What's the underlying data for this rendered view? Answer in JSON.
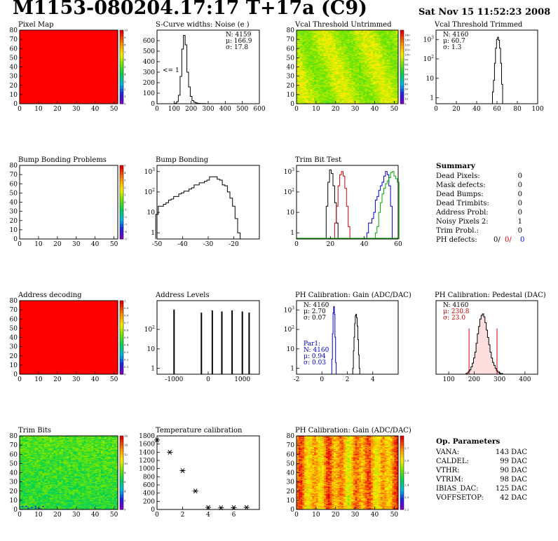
{
  "header": {
    "title": "M1153-080204.17:17 T+17a (C9)",
    "date": "Sat Nov 15 11:52:23 2008"
  },
  "chart_data": [
    {
      "id": "pixel-map",
      "type": "heatmap",
      "title": "Pixel Map",
      "fill": "#ff0000",
      "xlim": [
        0,
        52
      ],
      "ylim": [
        0,
        80
      ],
      "xticks": [
        0,
        10,
        20,
        30,
        40,
        50
      ],
      "yticks": [
        0,
        10,
        20,
        30,
        40,
        50,
        60,
        70,
        80
      ],
      "zlim": [
        0,
        10
      ],
      "zticks": [
        0,
        1,
        2,
        3,
        4,
        5,
        6,
        7,
        8,
        9,
        10
      ],
      "values_note": "all pixels responded"
    },
    {
      "id": "scurve",
      "type": "histogram",
      "title": "S-Curve widths: Noise (e )",
      "xlim": [
        0,
        600
      ],
      "ylim": [
        0,
        700
      ],
      "xticks": [
        0,
        100,
        200,
        300,
        400,
        500,
        600
      ],
      "yticks": [
        0,
        100,
        200,
        300,
        400,
        500,
        600
      ],
      "annotation": "<= 1",
      "stats": [
        "N: 4159",
        "μ: 166.9",
        "σ: 17.8"
      ],
      "series": [
        {
          "color": "#000000",
          "bin_width": 10,
          "x": [
            110,
            120,
            130,
            140,
            150,
            160,
            170,
            180,
            190,
            200,
            210,
            220,
            230,
            240,
            250,
            260,
            270,
            280
          ],
          "values": [
            5,
            20,
            80,
            260,
            520,
            650,
            560,
            300,
            160,
            70,
            30,
            15,
            8,
            4,
            3,
            2,
            1,
            1
          ]
        }
      ]
    },
    {
      "id": "vcal-untrimmed",
      "type": "heatmap",
      "title": "Vcal Threshold Untrimmed",
      "xlim": [
        0,
        52
      ],
      "ylim": [
        0,
        80
      ],
      "xticks": [
        0,
        10,
        20,
        30,
        40,
        50
      ],
      "yticks": [
        0,
        10,
        20,
        30,
        40,
        50,
        60,
        70,
        80
      ],
      "zlim": [
        0,
        150
      ],
      "zticks": [
        0,
        10,
        20,
        30,
        40,
        50,
        60,
        70,
        80,
        90,
        100,
        110,
        120,
        130,
        140
      ],
      "value_range": [
        75,
        105
      ]
    },
    {
      "id": "vcal-trimmed",
      "type": "histogram",
      "title": "Vcal Threshold Trimmed",
      "yscale": "log",
      "xlim": [
        0,
        100
      ],
      "ylim": [
        0.5,
        3000
      ],
      "xticks": [
        0,
        20,
        40,
        60,
        80,
        100
      ],
      "yticks": [
        1,
        10,
        100,
        1000
      ],
      "stats": [
        "N: 4160",
        "μ: 60.7",
        "σ:  1.3"
      ],
      "series": [
        {
          "color": "#000000",
          "bin_width": 1,
          "x": [
            56,
            57,
            58,
            59,
            60,
            61,
            62,
            63,
            64,
            65
          ],
          "values": [
            2,
            8,
            60,
            350,
            1000,
            1300,
            900,
            350,
            60,
            5
          ]
        }
      ]
    },
    {
      "id": "bump-problems",
      "type": "heatmap",
      "title": "Bump Bonding Problems",
      "fill": "#ffffff",
      "xlim": [
        0,
        52
      ],
      "ylim": [
        0,
        80
      ],
      "xticks": [
        0,
        10,
        20,
        30,
        40,
        50
      ],
      "yticks": [
        0,
        10,
        20,
        30,
        40,
        50,
        60,
        70,
        80
      ],
      "zlim": [
        -5,
        5
      ],
      "zticks": [
        -5,
        -4,
        -3,
        -2,
        -1,
        0,
        1,
        2,
        3,
        4,
        5
      ],
      "values_note": "no problems"
    },
    {
      "id": "bump-bonding",
      "type": "histogram",
      "title": "Bump Bonding",
      "yscale": "log",
      "xlim": [
        -50,
        -10
      ],
      "ylim": [
        0.5,
        2000
      ],
      "xticks": [
        -50,
        -40,
        -30,
        -20
      ],
      "yticks": [
        1,
        10,
        100,
        1000
      ],
      "series": [
        {
          "color": "#000000",
          "bin_width": 1,
          "x": [
            -50,
            -49,
            -48,
            -47,
            -46,
            -45,
            -44,
            -43,
            -42,
            -41,
            -40,
            -39,
            -38,
            -37,
            -36,
            -35,
            -34,
            -33,
            -32,
            -31,
            -30,
            -29,
            -28,
            -27,
            -26,
            -25,
            -24,
            -23,
            -22,
            -21,
            -20,
            -19,
            -18
          ],
          "values": [
            8,
            20,
            20,
            25,
            30,
            40,
            45,
            60,
            60,
            80,
            90,
            110,
            110,
            140,
            160,
            220,
            220,
            280,
            280,
            330,
            380,
            550,
            550,
            550,
            420,
            380,
            220,
            200,
            100,
            50,
            20,
            5,
            1
          ]
        }
      ]
    },
    {
      "id": "trim-bit-test",
      "type": "histogram",
      "title": "Trim Bit Test",
      "yscale": "log",
      "xlim": [
        0,
        60
      ],
      "ylim": [
        0.5,
        2000
      ],
      "xticks": [
        0,
        20,
        40,
        60
      ],
      "yticks": [
        1,
        10,
        100,
        1000
      ],
      "series": [
        {
          "color": "#000000",
          "bin_width": 1,
          "x": [
            18,
            19,
            20,
            21,
            22,
            23,
            24
          ],
          "values": [
            20,
            300,
            1200,
            800,
            200,
            30,
            3
          ]
        },
        {
          "color": "#cc0000",
          "bin_width": 1,
          "x": [
            23,
            24,
            25,
            26,
            27,
            28,
            29,
            30,
            31
          ],
          "values": [
            3,
            20,
            200,
            700,
            1000,
            600,
            150,
            20,
            2
          ]
        },
        {
          "color": "#0000cc",
          "bin_width": 1,
          "x": [
            42,
            43,
            44,
            45,
            46,
            47,
            48,
            49,
            50,
            51,
            52,
            53,
            54,
            55,
            56
          ],
          "values": [
            1,
            3,
            3,
            5,
            10,
            40,
            60,
            120,
            200,
            300,
            600,
            1000,
            700,
            200,
            20
          ]
        },
        {
          "color": "#00aa00",
          "bin_width": 1,
          "x": [
            47,
            48,
            49,
            50,
            51,
            52,
            53,
            54,
            55,
            56,
            57,
            58,
            59,
            60
          ],
          "values": [
            1,
            2,
            10,
            30,
            80,
            150,
            250,
            350,
            500,
            900,
            1000,
            600,
            450,
            300
          ]
        }
      ]
    },
    {
      "id": "address-decoding",
      "type": "heatmap",
      "title": "Address decoding",
      "fill": "#ff0000",
      "xlim": [
        0,
        52
      ],
      "ylim": [
        0,
        80
      ],
      "xticks": [
        0,
        10,
        20,
        30,
        40,
        50
      ],
      "yticks": [
        0,
        10,
        20,
        30,
        40,
        50,
        60,
        70,
        80
      ],
      "zlim": [
        0,
        1
      ],
      "zticks": [
        0,
        0.1,
        0.2,
        0.3,
        0.4,
        0.5,
        0.6,
        0.7,
        0.8,
        0.9,
        1
      ],
      "values_note": "all addresses decoded"
    },
    {
      "id": "address-levels",
      "type": "histogram",
      "title": "Address Levels",
      "yscale": "log",
      "xlim": [
        -1500,
        1500
      ],
      "ylim": [
        0.5,
        3000
      ],
      "xticks": [
        -1000,
        0,
        1000
      ],
      "yticks": [
        1,
        10,
        100
      ],
      "series": [
        {
          "color": "#000000",
          "bin_width": 20,
          "x": [
            -1000,
            -200,
            120,
            400,
            700,
            1000,
            1200
          ],
          "values": [
            1000,
            700,
            900,
            800,
            900,
            800,
            700
          ]
        }
      ]
    },
    {
      "id": "ph-gain",
      "type": "histogram",
      "title": "PH Calibration: Gain (ADC/DAC)",
      "yscale": "log",
      "xlim": [
        -2,
        6
      ],
      "ylim": [
        0.5,
        3000
      ],
      "xticks": [
        -2,
        0,
        2,
        4
      ],
      "yticks": [
        1,
        10,
        100,
        1000
      ],
      "stats": [
        "N: 4160",
        "μ: 2.70",
        "σ: 0.07"
      ],
      "stats2": [
        "Par1:",
        "N: 4160",
        "μ: 0.94",
        "σ: 0.03"
      ],
      "series": [
        {
          "color": "#000000",
          "bin_width": 0.05,
          "x": [
            2.45,
            2.5,
            2.55,
            2.6,
            2.65,
            2.7,
            2.75,
            2.8,
            2.85,
            2.9,
            2.95
          ],
          "values": [
            1,
            8,
            40,
            200,
            500,
            600,
            400,
            150,
            30,
            5,
            1
          ]
        },
        {
          "color": "#0000cc",
          "bin_width": 0.05,
          "x": [
            0.8,
            0.85,
            0.9,
            0.95,
            1.0,
            1.05,
            1.1
          ],
          "values": [
            3,
            60,
            700,
            1500,
            600,
            40,
            2
          ]
        }
      ]
    },
    {
      "id": "ph-pedestal",
      "type": "histogram",
      "title": "PH Calibration: Pedestal (DAC)",
      "xlim": [
        50,
        450
      ],
      "ylim": [
        0,
        100
      ],
      "xticks": [
        100,
        200,
        300,
        400
      ],
      "yticks": [],
      "stats": [
        "N: 4160",
        "μ: 230.8",
        "σ: 23.0"
      ],
      "cut_lines": [
        180,
        290
      ],
      "series": [
        {
          "color": "#000000",
          "bin_width": 5,
          "x": [
            170,
            175,
            180,
            185,
            190,
            195,
            200,
            205,
            210,
            215,
            220,
            225,
            230,
            235,
            240,
            245,
            250,
            255,
            260,
            265,
            270,
            275,
            280,
            285,
            290,
            295,
            300,
            305,
            310
          ],
          "values": [
            1,
            2,
            4,
            6,
            10,
            15,
            22,
            30,
            42,
            55,
            65,
            75,
            80,
            82,
            78,
            70,
            60,
            50,
            40,
            30,
            22,
            16,
            12,
            8,
            5,
            3,
            2,
            1,
            1
          ]
        }
      ]
    },
    {
      "id": "trim-bits",
      "type": "heatmap",
      "title": "Trim Bits",
      "xlim": [
        0,
        52
      ],
      "ylim": [
        0,
        80
      ],
      "xticks": [
        0,
        10,
        20,
        30,
        40,
        50
      ],
      "yticks": [
        0,
        10,
        20,
        30,
        40,
        50,
        60,
        70,
        80
      ],
      "zlim": [
        0,
        16
      ],
      "zticks": [
        0,
        2,
        4,
        6,
        8,
        10,
        12,
        14,
        16
      ],
      "value_range": [
        5,
        10
      ]
    },
    {
      "id": "temperature",
      "type": "scatter",
      "title": "Temperature calibration",
      "xlim": [
        0,
        8
      ],
      "ylim": [
        0,
        1800
      ],
      "xticks": [
        0,
        2,
        4,
        6
      ],
      "yticks": [
        0,
        200,
        400,
        600,
        800,
        1000,
        1200,
        1400,
        1600,
        1800
      ],
      "x": [
        0,
        1,
        2,
        3,
        4,
        5,
        6,
        7
      ],
      "y": [
        1700,
        1400,
        950,
        450,
        50,
        40,
        45,
        50
      ]
    },
    {
      "id": "ph-gain-map",
      "type": "heatmap",
      "title": "PH Calibration: Gain (ADC/DAC)",
      "xlim": [
        0,
        52
      ],
      "ylim": [
        0,
        80
      ],
      "xticks": [
        0,
        10,
        20,
        30,
        40,
        50
      ],
      "yticks": [
        0,
        10,
        20,
        30,
        40,
        50,
        60,
        70,
        80
      ],
      "zlim": [
        2.2,
        2.8
      ],
      "zticks": [
        2.2,
        2.3,
        2.4,
        2.5,
        2.6,
        2.7
      ],
      "value_range": [
        2.55,
        2.8
      ]
    }
  ],
  "summary": {
    "title": "Summary",
    "rows": [
      {
        "label": "Dead Pixels:",
        "value": "0"
      },
      {
        "label": "Mask defects:",
        "value": "0"
      },
      {
        "label": "Dead Bumps:",
        "value": "0"
      },
      {
        "label": "Dead Trimbits:",
        "value": "0"
      },
      {
        "label": "Address Probl:",
        "value": "0"
      },
      {
        "label": "Noisy Pixels 2:",
        "value": "1"
      },
      {
        "label": "Trim Probl.:",
        "value": "0"
      }
    ],
    "ph_label": "PH defects:",
    "ph_values": [
      {
        "value": "0/",
        "color": "#000000"
      },
      {
        "value": "0/",
        "color": "#cc0000"
      },
      {
        "value": "0",
        "color": "#0000cc"
      }
    ]
  },
  "op_params": {
    "title": "Op. Parameters",
    "rows": [
      {
        "label": "VANA:",
        "value": "143 DAC"
      },
      {
        "label": "CALDEL:",
        "value": "99 DAC"
      },
      {
        "label": "VTHR:",
        "value": "90 DAC"
      },
      {
        "label": "VTRIM:",
        "value": "98 DAC"
      },
      {
        "label": "IBIAS_DAC:",
        "value": "125 DAC"
      },
      {
        "label": "VOFFSETOP:",
        "value": "42 DAC"
      }
    ]
  }
}
